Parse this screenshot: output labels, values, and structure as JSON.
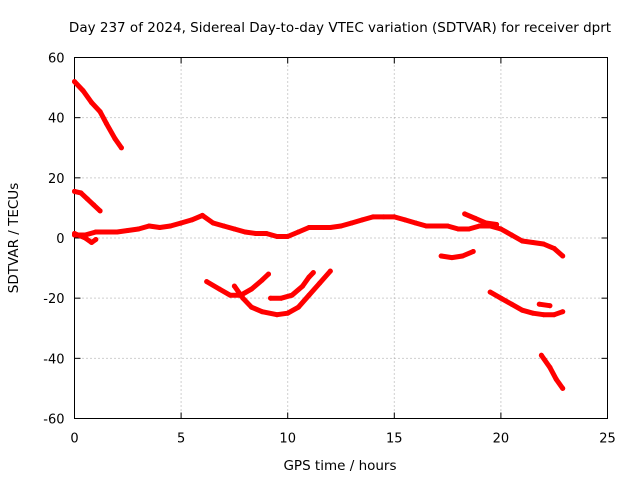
{
  "chart_data": {
    "type": "scatter",
    "title": "Day 237 of 2024, Sidereal Day-to-day VTEC variation (SDTVAR) for receiver dprt",
    "xlabel": "GPS time / hours",
    "ylabel": "SDTVAR / TECUs",
    "xlim": [
      0,
      25
    ],
    "ylim": [
      -60,
      60
    ],
    "xticks": [
      0,
      5,
      10,
      15,
      20,
      25
    ],
    "yticks": [
      -60,
      -40,
      -20,
      0,
      20,
      40,
      60
    ],
    "grid": true,
    "color": "#ff0000",
    "series": [
      {
        "name": "main",
        "points": [
          [
            0,
            1
          ],
          [
            0.5,
            1
          ],
          [
            1,
            2
          ],
          [
            1.5,
            2
          ],
          [
            2,
            2
          ],
          [
            2.5,
            2.5
          ],
          [
            3,
            3
          ],
          [
            3.5,
            4
          ],
          [
            4,
            3.5
          ],
          [
            4.5,
            4
          ],
          [
            5,
            5
          ],
          [
            5.5,
            6
          ],
          [
            6,
            7.5
          ],
          [
            6.5,
            5
          ],
          [
            7,
            4
          ],
          [
            7.5,
            3
          ],
          [
            8,
            2
          ],
          [
            8.5,
            1.5
          ],
          [
            9,
            1.5
          ],
          [
            9.5,
            0.5
          ],
          [
            10,
            0.5
          ],
          [
            10.5,
            2
          ],
          [
            11,
            3.5
          ],
          [
            11.5,
            3.5
          ],
          [
            12,
            3.5
          ],
          [
            12.5,
            4
          ],
          [
            13,
            5
          ],
          [
            13.5,
            6
          ],
          [
            14,
            7
          ],
          [
            14.5,
            7
          ],
          [
            15,
            7
          ],
          [
            15.5,
            6
          ],
          [
            16,
            5
          ],
          [
            16.5,
            4
          ],
          [
            17,
            4
          ],
          [
            17.5,
            4
          ],
          [
            18,
            3
          ],
          [
            18.5,
            3
          ],
          [
            19,
            4
          ],
          [
            19.5,
            4
          ],
          [
            20,
            3
          ],
          [
            20.5,
            1
          ],
          [
            21,
            -1
          ],
          [
            21.5,
            -1.5
          ],
          [
            22,
            -2
          ],
          [
            22.5,
            -3.5
          ],
          [
            22.9,
            -6
          ]
        ]
      },
      {
        "name": "early-positive",
        "points": [
          [
            0,
            15.5
          ],
          [
            0.3,
            15
          ],
          [
            0.6,
            13
          ],
          [
            0.9,
            11
          ],
          [
            1.2,
            9
          ]
        ]
      },
      {
        "name": "early-high",
        "points": [
          [
            0,
            52
          ],
          [
            0.4,
            49
          ],
          [
            0.8,
            45
          ],
          [
            1.2,
            42
          ],
          [
            1.5,
            38
          ],
          [
            1.9,
            33
          ],
          [
            2.2,
            30
          ]
        ]
      },
      {
        "name": "early-dip",
        "points": [
          [
            0,
            1.5
          ],
          [
            0.5,
            0
          ],
          [
            0.8,
            -1.5
          ],
          [
            1.0,
            -0.5
          ]
        ]
      },
      {
        "name": "arc-a",
        "points": [
          [
            6.2,
            -14.5
          ],
          [
            6.8,
            -17
          ],
          [
            7.3,
            -19
          ],
          [
            7.8,
            -19
          ],
          [
            8.3,
            -17
          ],
          [
            8.8,
            -14
          ],
          [
            9.1,
            -12
          ]
        ]
      },
      {
        "name": "arc-b",
        "points": [
          [
            7.5,
            -16
          ],
          [
            7.9,
            -20
          ],
          [
            8.3,
            -23
          ],
          [
            8.8,
            -24.5
          ],
          [
            9.5,
            -25.5
          ],
          [
            10,
            -25
          ],
          [
            10.5,
            -23
          ],
          [
            11,
            -19
          ],
          [
            11.5,
            -15
          ],
          [
            12,
            -11
          ]
        ]
      },
      {
        "name": "arc-c",
        "points": [
          [
            9.2,
            -20
          ],
          [
            9.7,
            -20
          ],
          [
            10.2,
            -19
          ],
          [
            10.7,
            -16
          ],
          [
            11.0,
            -13
          ],
          [
            11.2,
            -11.5
          ]
        ]
      },
      {
        "name": "late-short",
        "points": [
          [
            17.2,
            -6
          ],
          [
            17.7,
            -6.5
          ],
          [
            18.2,
            -6
          ],
          [
            18.7,
            -4.5
          ]
        ]
      },
      {
        "name": "late-upper",
        "points": [
          [
            18.3,
            8
          ],
          [
            18.8,
            6.5
          ],
          [
            19.3,
            5
          ],
          [
            19.8,
            4.5
          ]
        ]
      },
      {
        "name": "late-lower",
        "points": [
          [
            19.5,
            -18
          ],
          [
            20,
            -20
          ],
          [
            20.5,
            -22
          ],
          [
            21,
            -24
          ],
          [
            21.5,
            -25
          ],
          [
            22,
            -25.5
          ],
          [
            22.5,
            -25.5
          ],
          [
            22.9,
            -24.5
          ]
        ]
      },
      {
        "name": "late-mid",
        "points": [
          [
            21.8,
            -22
          ],
          [
            22.3,
            -22.5
          ]
        ]
      },
      {
        "name": "late-deep",
        "points": [
          [
            21.9,
            -39
          ],
          [
            22.3,
            -43
          ],
          [
            22.6,
            -47
          ],
          [
            22.9,
            -50
          ]
        ]
      }
    ]
  }
}
